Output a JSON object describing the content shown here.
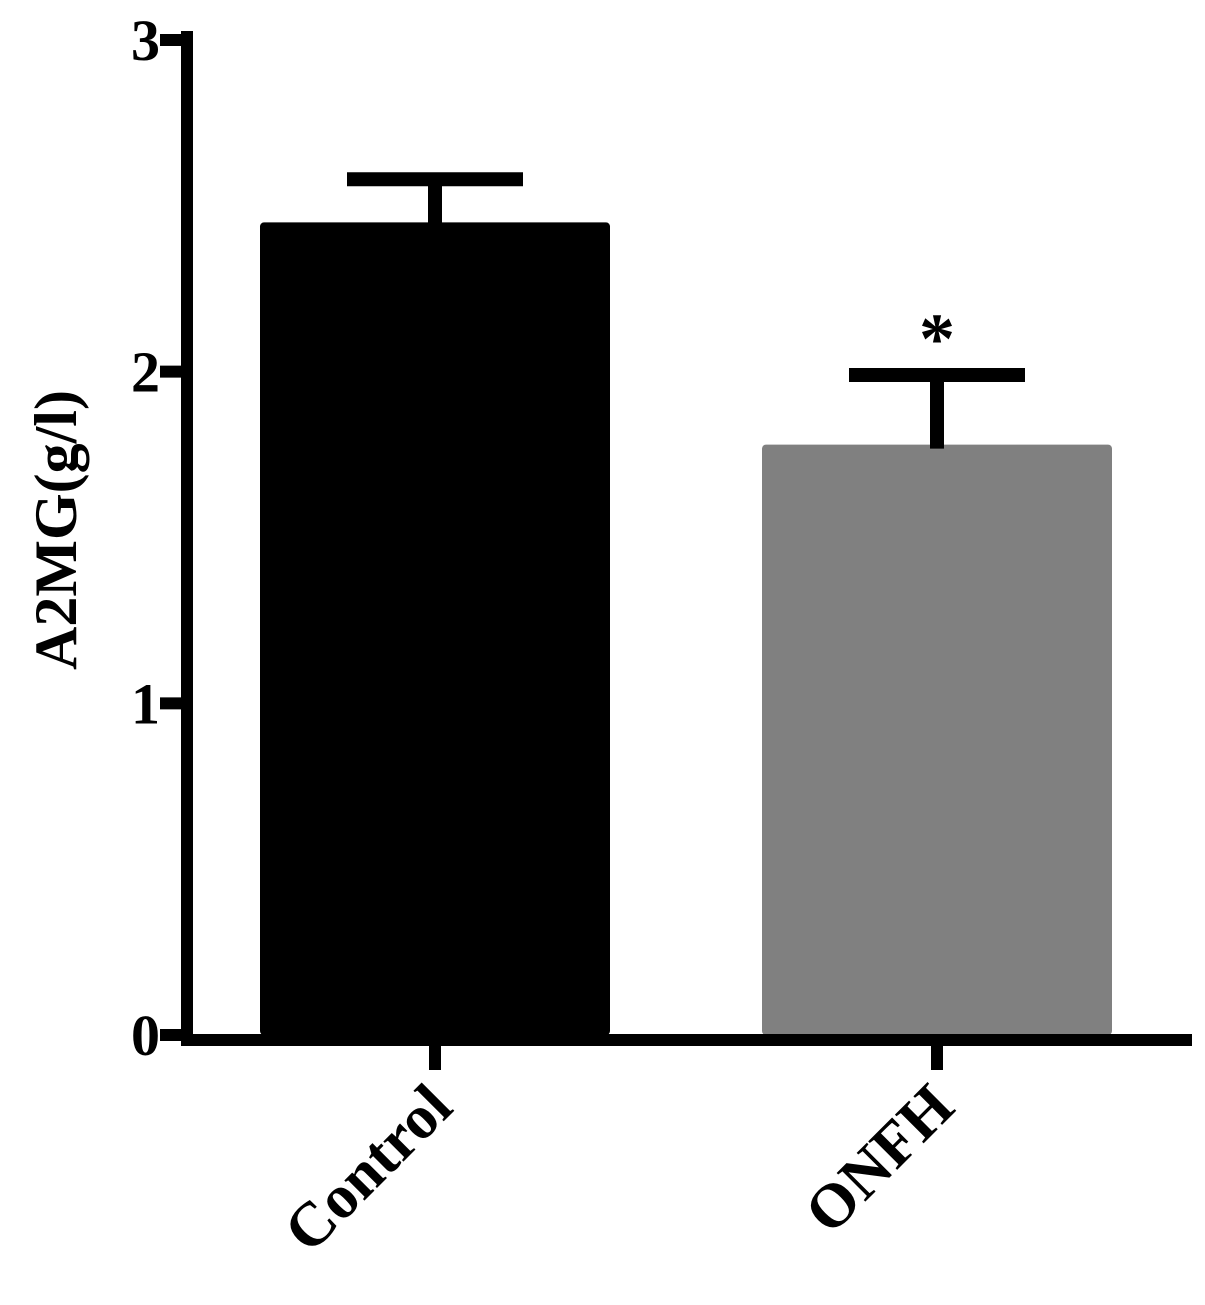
{
  "chart_data": {
    "type": "bar",
    "categories": [
      "Control",
      "ONFH"
    ],
    "values": [
      2.45,
      1.78
    ],
    "error_upper": [
      2.58,
      1.99
    ],
    "significance": [
      "",
      "*"
    ],
    "bar_colors": [
      "#000000",
      "#808080"
    ],
    "ylabel": "A2MG(g/l)",
    "xlabel": "",
    "title": "",
    "ylim": [
      0,
      3
    ],
    "yticks": [
      "0",
      "1",
      "2",
      "3"
    ],
    "grid": false,
    "legend": "none"
  }
}
